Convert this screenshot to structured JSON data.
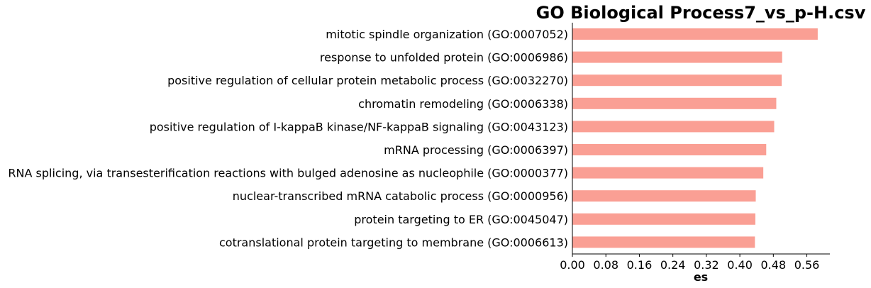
{
  "chart_data": {
    "type": "bar",
    "orientation": "horizontal",
    "title": "GO Biological Process7_vs_p-H.csv",
    "xlabel": "es",
    "ylabel": "",
    "xlim": [
      0,
      0.615
    ],
    "xticks": [
      "0.00",
      "0.08",
      "0.16",
      "0.24",
      "0.32",
      "0.40",
      "0.48",
      "0.56"
    ],
    "categories": [
      "mitotic spindle organization (GO:0007052)",
      "response to unfolded protein (GO:0006986)",
      "positive regulation of cellular protein metabolic process (GO:0032270)",
      "chromatin remodeling (GO:0006338)",
      "positive regulation of I-kappaB kinase/NF-kappaB signaling (GO:0043123)",
      "mRNA processing (GO:0006397)",
      "RNA splicing, via transesterification reactions with bulged adenosine as nucleophile (GO:0000377)",
      "nuclear-transcribed mRNA catabolic process (GO:0000956)",
      "protein targeting to ER (GO:0045047)",
      "cotranslational protein targeting to membrane (GO:0006613)"
    ],
    "values": [
      0.586,
      0.501,
      0.5,
      0.487,
      0.482,
      0.463,
      0.456,
      0.438,
      0.437,
      0.436
    ],
    "bar_color": "#fa9f94",
    "grid": false,
    "legend": "none"
  }
}
